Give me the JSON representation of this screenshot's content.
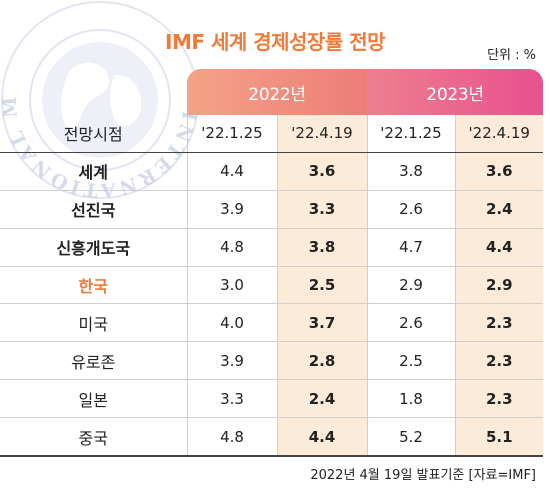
{
  "seal": {
    "text": "INTERNATIONAL MONETARY FUND",
    "icon": "imf-globe-seal-icon",
    "color": "#c9d1e6"
  },
  "title": "IMF 세계 경제성장률 전망",
  "unit": "단위 : %",
  "footer": "2022년 4월 19일 발표기준 [자료=IMF]",
  "colors": {
    "title": "#f07a3a",
    "header_2022": "#ee8a7c",
    "header_2023": "#e85a8e",
    "highlight_column": "#fcebd9"
  },
  "chart_data": {
    "type": "table",
    "title": "IMF 세계 경제성장률 전망",
    "unit": "단위 : %",
    "column_groups": [
      {
        "label": "2022년",
        "columns": [
          "'22.1.25",
          "'22.4.19"
        ]
      },
      {
        "label": "2023년",
        "columns": [
          "'22.1.25",
          "'22.4.19"
        ]
      }
    ],
    "row_header_label": "전망시점",
    "rows": [
      {
        "label": "세계",
        "values": [
          "4.4",
          "3.6",
          "3.8",
          "3.6"
        ],
        "style": "bold"
      },
      {
        "label": "선진국",
        "values": [
          "3.9",
          "3.3",
          "2.6",
          "2.4"
        ],
        "style": "bold"
      },
      {
        "label": "신흥개도국",
        "values": [
          "4.8",
          "3.8",
          "4.7",
          "4.4"
        ],
        "style": "bold"
      },
      {
        "label": "한국",
        "values": [
          "3.0",
          "2.5",
          "2.9",
          "2.9"
        ],
        "style": "orange"
      },
      {
        "label": "미국",
        "values": [
          "4.0",
          "3.7",
          "2.6",
          "2.3"
        ],
        "style": "normal"
      },
      {
        "label": "유로존",
        "values": [
          "3.9",
          "2.8",
          "2.5",
          "2.3"
        ],
        "style": "normal"
      },
      {
        "label": "일본",
        "values": [
          "3.3",
          "2.4",
          "1.8",
          "2.3"
        ],
        "style": "normal"
      },
      {
        "label": "중국",
        "values": [
          "4.8",
          "4.4",
          "5.2",
          "5.1"
        ],
        "style": "normal"
      }
    ]
  }
}
